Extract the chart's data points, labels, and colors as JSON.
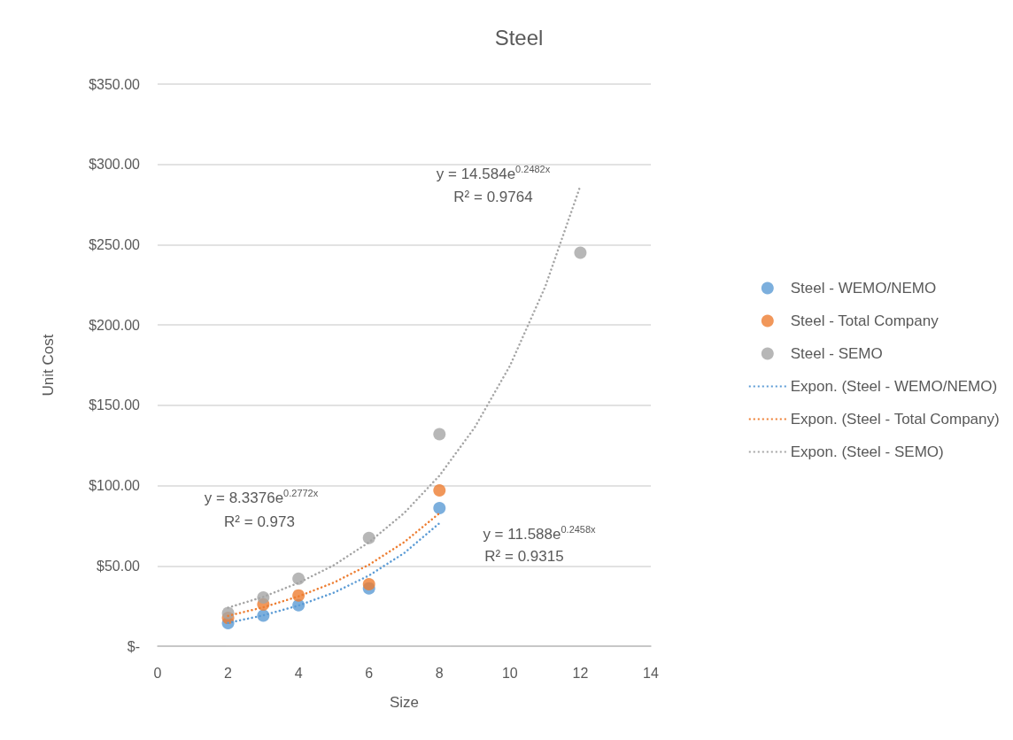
{
  "chart_data": {
    "type": "scatter",
    "title": "Steel",
    "xlabel": "Size",
    "ylabel": "Unit Cost",
    "xlim": [
      0,
      14
    ],
    "xticks": [
      0,
      2,
      4,
      6,
      8,
      10,
      12,
      14
    ],
    "ylim": [
      0,
      350
    ],
    "yticks": [
      {
        "value": 0,
        "label": "$-"
      },
      {
        "value": 50,
        "label": "$50.00"
      },
      {
        "value": 100,
        "label": "$100.00"
      },
      {
        "value": 150,
        "label": "$150.00"
      },
      {
        "value": 200,
        "label": "$200.00"
      },
      {
        "value": 250,
        "label": "$250.00"
      },
      {
        "value": 300,
        "label": "$300.00"
      },
      {
        "value": 350,
        "label": "$350.00"
      }
    ],
    "grid": "y",
    "legend": "right",
    "marker": "circle",
    "series": [
      {
        "name": "Steel - WEMO/NEMO",
        "color": "#5b9bd5",
        "x": [
          2,
          3,
          4,
          6,
          8
        ],
        "values": [
          14.3,
          19,
          25.5,
          36,
          86
        ]
      },
      {
        "name": "Steel - Total Company",
        "color": "#ed7d31",
        "x": [
          2,
          3,
          4,
          6,
          8
        ],
        "values": [
          17.6,
          26,
          31.6,
          38.6,
          97
        ]
      },
      {
        "name": "Steel - SEMO",
        "color": "#a5a5a5",
        "x": [
          2,
          3,
          4,
          6,
          8,
          12
        ],
        "values": [
          20.6,
          30.3,
          42,
          67.4,
          132,
          245
        ]
      },
      {
        "name": "Expon. (Steel - WEMO/NEMO)",
        "type": "line",
        "marker": "none",
        "line_style": "dotted",
        "color": "#5b9bd5",
        "x": [
          2,
          3,
          4,
          5,
          6,
          7,
          8
        ],
        "values": [
          14.5,
          19.2,
          25.3,
          33.3,
          44,
          58,
          76.6
        ]
      },
      {
        "name": "Expon. (Steel - Total Company)",
        "type": "line",
        "marker": "none",
        "line_style": "dotted",
        "color": "#ed7d31",
        "x": [
          2,
          3,
          4,
          5,
          6,
          7,
          8
        ],
        "values": [
          18.9,
          24.2,
          31,
          39.6,
          50.7,
          64.8,
          82.8
        ]
      },
      {
        "name": "Expon. (Steel - SEMO)",
        "type": "line",
        "marker": "none",
        "line_style": "dotted",
        "color": "#a5a5a5",
        "x": [
          2,
          3,
          4,
          5,
          6,
          7,
          8,
          9,
          10,
          11,
          12
        ],
        "values": [
          24,
          30.7,
          39.4,
          50.4,
          64.7,
          82.9,
          106.2,
          136.2,
          174.5,
          223.7,
          286.7
        ]
      }
    ],
    "annotations": [
      "y = 8.3376e$^{0.2772x}$",
      "R² = 0.973",
      "y = 11.588e$^{0.2458x}$",
      "R² = 0.9315",
      "y = 14.584e$^{0.2482x}$",
      "R² = 0.9764"
    ]
  }
}
